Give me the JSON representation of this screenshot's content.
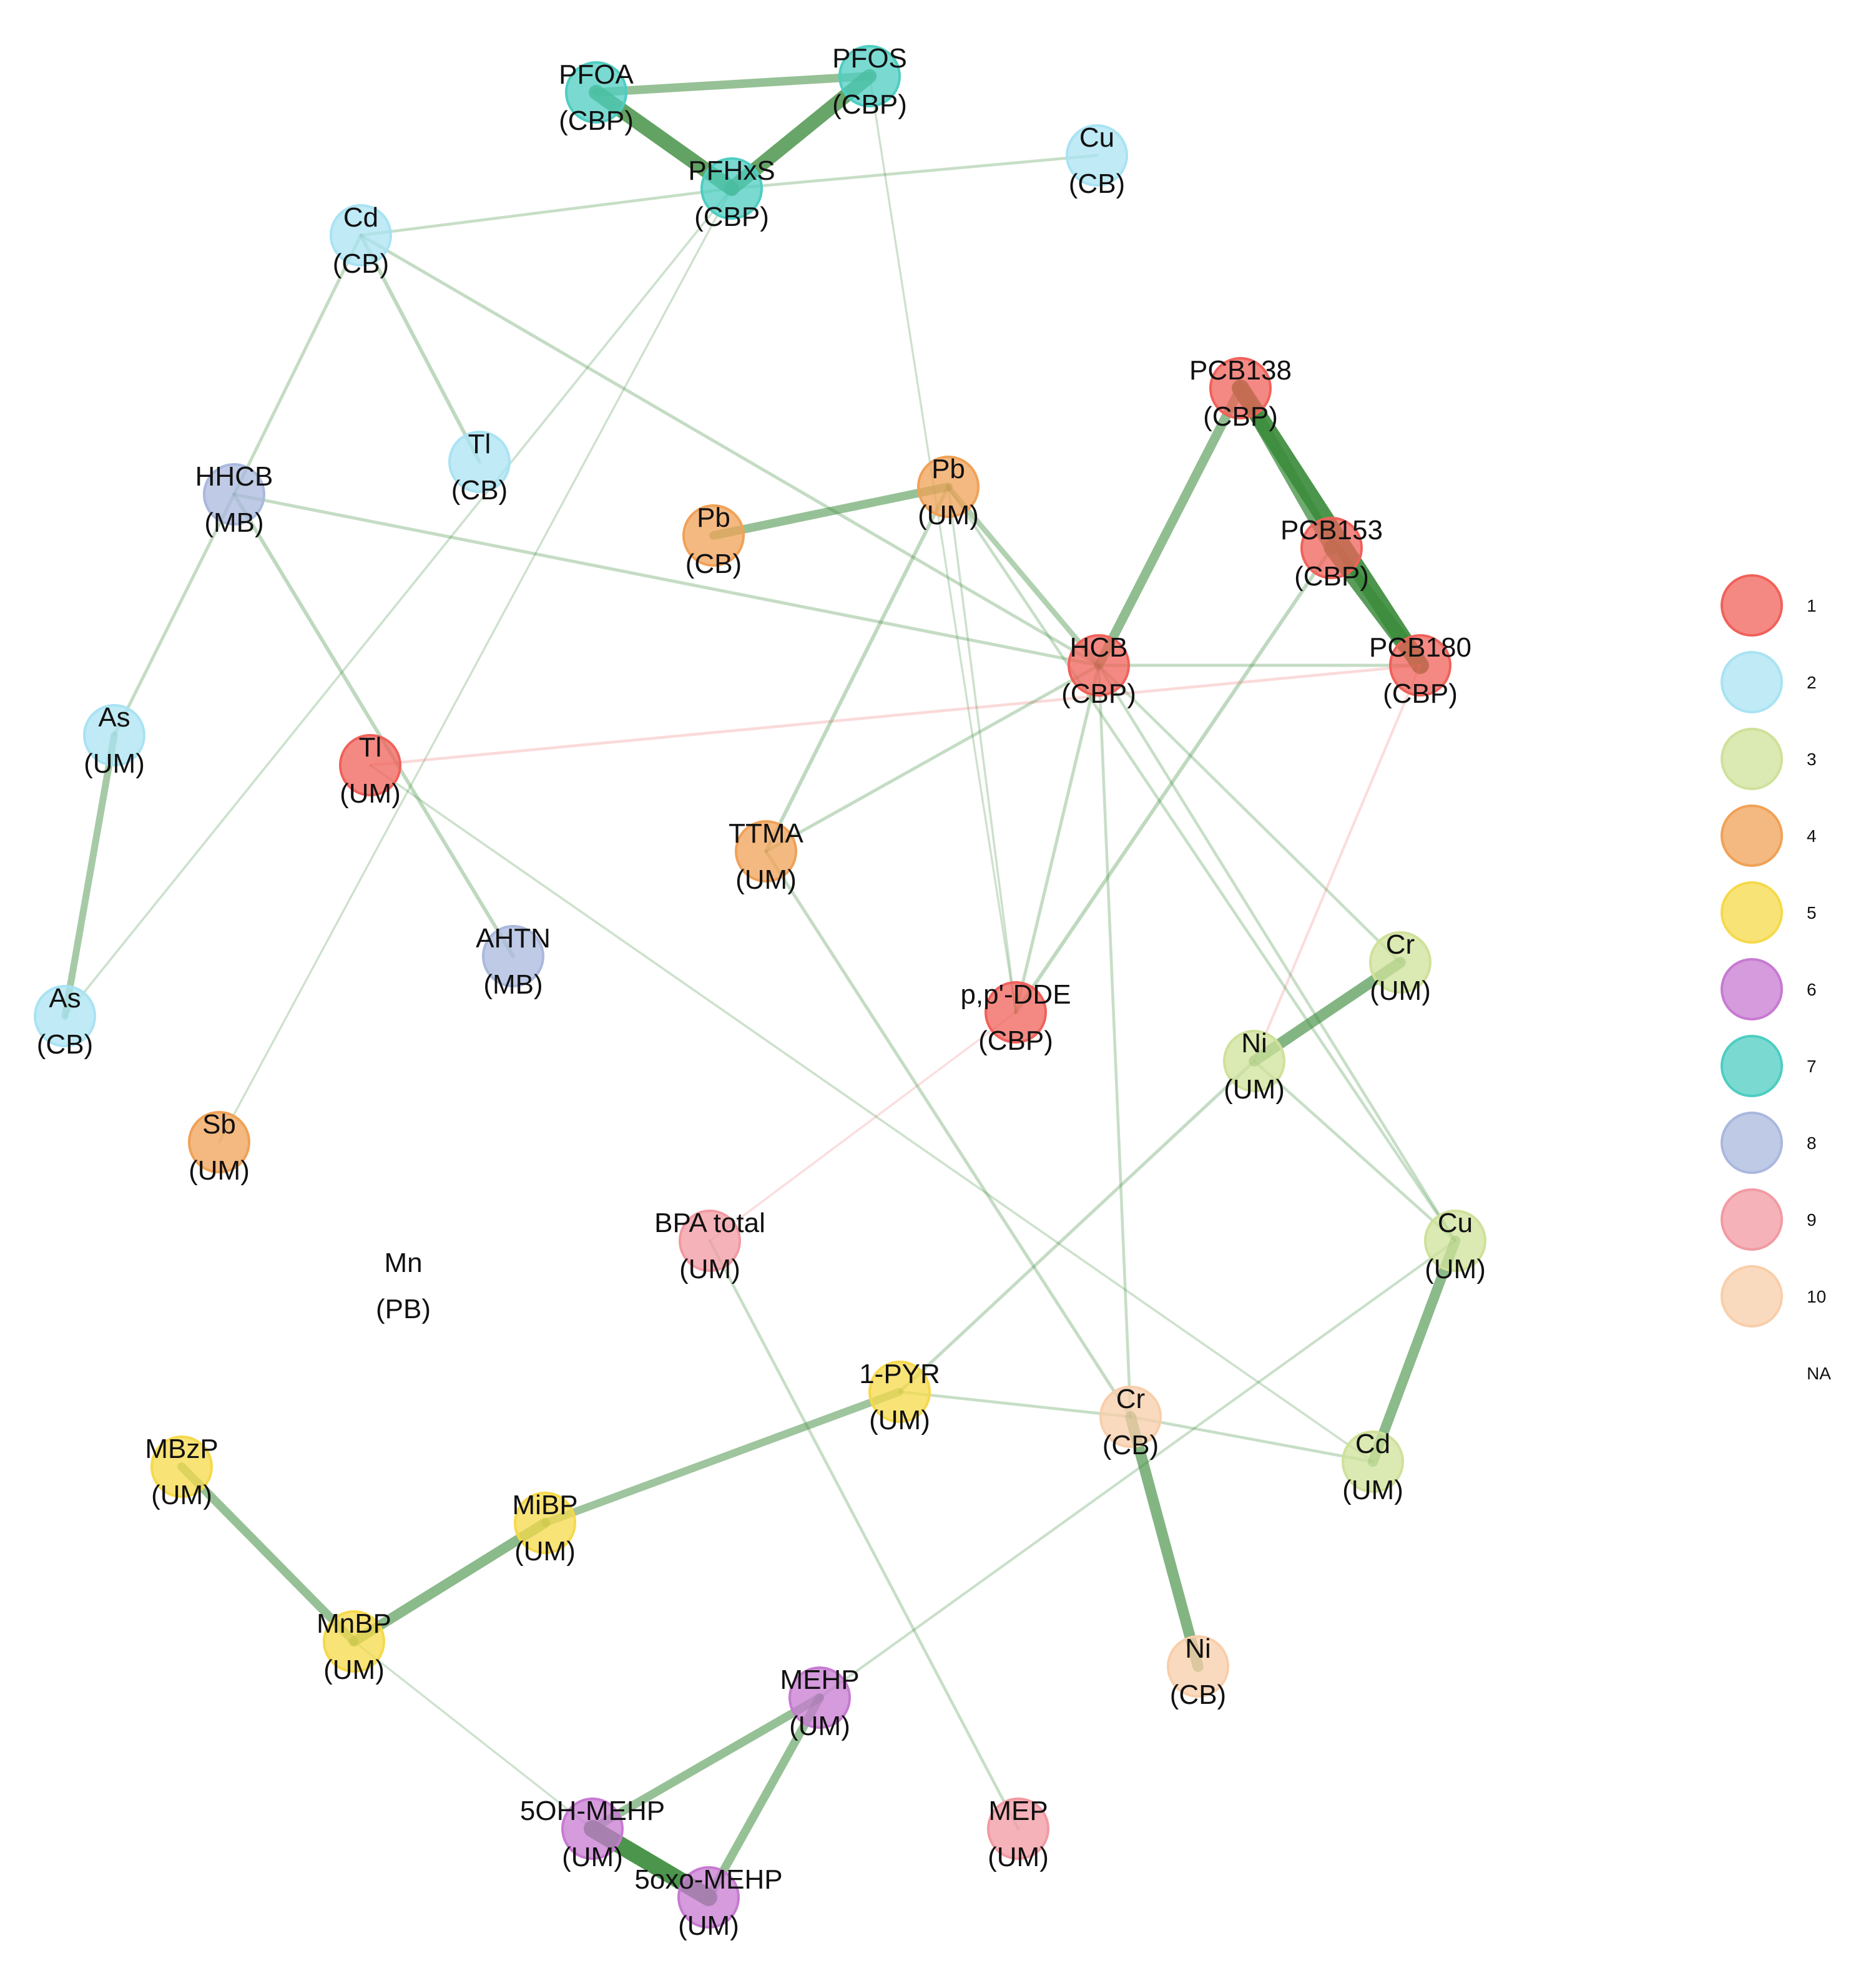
{
  "nodes": [
    {
      "id": "pfoa_cbp",
      "name": "PFOA",
      "matrix": "(CBP)",
      "group": 7
    },
    {
      "id": "pfos_cbp",
      "name": "PFOS",
      "matrix": "(CBP)",
      "group": 7
    },
    {
      "id": "pfhxs_cbp",
      "name": "PFHxS",
      "matrix": "(CBP)",
      "group": 7
    },
    {
      "id": "cu_cb",
      "name": "Cu",
      "matrix": "(CB)",
      "group": 2
    },
    {
      "id": "cd_cb",
      "name": "Cd",
      "matrix": "(CB)",
      "group": 2
    },
    {
      "id": "tl_cb",
      "name": "Tl",
      "matrix": "(CB)",
      "group": 2
    },
    {
      "id": "hhcb_mb",
      "name": "HHCB",
      "matrix": "(MB)",
      "group": 8
    },
    {
      "id": "pb_um",
      "name": "Pb",
      "matrix": "(UM)",
      "group": 4
    },
    {
      "id": "pb_cb",
      "name": "Pb",
      "matrix": "(CB)",
      "group": 4
    },
    {
      "id": "pcb138_cbp",
      "name": "PCB138",
      "matrix": "(CBP)",
      "group": 1
    },
    {
      "id": "pcb153_cbp",
      "name": "PCB153",
      "matrix": "(CBP)",
      "group": 1
    },
    {
      "id": "pcb180_cbp",
      "name": "PCB180",
      "matrix": "(CBP)",
      "group": 1
    },
    {
      "id": "hcb_cbp",
      "name": "HCB",
      "matrix": "(CBP)",
      "group": 1
    },
    {
      "id": "as_um",
      "name": "As",
      "matrix": "(UM)",
      "group": 2
    },
    {
      "id": "tl_um",
      "name": "Tl",
      "matrix": "(UM)",
      "group": 1
    },
    {
      "id": "ttma_um",
      "name": "TTMA",
      "matrix": "(UM)",
      "group": 4
    },
    {
      "id": "ahtn_mb",
      "name": "AHTN",
      "matrix": "(MB)",
      "group": 8
    },
    {
      "id": "as_cb",
      "name": "As",
      "matrix": "(CB)",
      "group": 2
    },
    {
      "id": "ppdde_cbp",
      "name": "p,p'-DDE",
      "matrix": "(CBP)",
      "group": 1
    },
    {
      "id": "cr_um",
      "name": "Cr",
      "matrix": "(UM)",
      "group": 3
    },
    {
      "id": "ni_um",
      "name": "Ni",
      "matrix": "(UM)",
      "group": 3
    },
    {
      "id": "sb_um",
      "name": "Sb",
      "matrix": "(UM)",
      "group": 4
    },
    {
      "id": "mn_pb",
      "name": "Mn",
      "matrix": "(PB)",
      "group": null
    },
    {
      "id": "bpa_um",
      "name": "BPA total",
      "matrix": "(UM)",
      "group": 9
    },
    {
      "id": "cu_um",
      "name": "Cu",
      "matrix": "(UM)",
      "group": 3
    },
    {
      "id": "pyr_um",
      "name": "1-PYR",
      "matrix": "(UM)",
      "group": 5
    },
    {
      "id": "cr_cb",
      "name": "Cr",
      "matrix": "(CB)",
      "group": 10
    },
    {
      "id": "cd_um",
      "name": "Cd",
      "matrix": "(UM)",
      "group": 3
    },
    {
      "id": "mbzp_um",
      "name": "MBzP",
      "matrix": "(UM)",
      "group": 5
    },
    {
      "id": "mibp_um",
      "name": "MiBP",
      "matrix": "(UM)",
      "group": 5
    },
    {
      "id": "mnbp_um",
      "name": "MnBP",
      "matrix": "(UM)",
      "group": 5
    },
    {
      "id": "ni_cb",
      "name": "Ni",
      "matrix": "(CB)",
      "group": 10
    },
    {
      "id": "mehp_um",
      "name": "MEHP",
      "matrix": "(UM)",
      "group": 6
    },
    {
      "id": "oh_mehp_um",
      "name": "5OH-MEHP",
      "matrix": "(UM)",
      "group": 6
    },
    {
      "id": "mep_um",
      "name": "MEP",
      "matrix": "(UM)",
      "group": 9
    },
    {
      "id": "oxo_mehp_um",
      "name": "5oxo-MEHP",
      "matrix": "(UM)",
      "group": 6
    }
  ],
  "edges": [
    {
      "source": "pfoa_cbp",
      "target": "pfhxs_cbp",
      "weight": 0.85,
      "sign": "positive"
    },
    {
      "source": "pfos_cbp",
      "target": "pfhxs_cbp",
      "weight": 0.8,
      "sign": "positive"
    },
    {
      "source": "pfoa_cbp",
      "target": "pfos_cbp",
      "weight": 0.45,
      "sign": "positive"
    },
    {
      "source": "pfhxs_cbp",
      "target": "cu_cb",
      "weight": 0.1,
      "sign": "positive"
    },
    {
      "source": "pfhxs_cbp",
      "target": "cd_cb",
      "weight": 0.1,
      "sign": "positive"
    },
    {
      "source": "pfhxs_cbp",
      "target": "as_cb",
      "weight": 0.06,
      "sign": "positive"
    },
    {
      "source": "pfhxs_cbp",
      "target": "sb_um",
      "weight": 0.05,
      "sign": "positive"
    },
    {
      "source": "pfos_cbp",
      "target": "ppdde_cbp",
      "weight": 0.05,
      "sign": "positive"
    },
    {
      "source": "cd_cb",
      "target": "tl_cb",
      "weight": 0.15,
      "sign": "positive"
    },
    {
      "source": "cd_cb",
      "target": "hhcb_mb",
      "weight": 0.12,
      "sign": "positive"
    },
    {
      "source": "cd_cb",
      "target": "hcb_cbp",
      "weight": 0.12,
      "sign": "positive"
    },
    {
      "source": "pcb138_cbp",
      "target": "pcb180_cbp",
      "weight": 1.0,
      "sign": "positive"
    },
    {
      "source": "pcb138_cbp",
      "target": "pcb153_cbp",
      "weight": 0.75,
      "sign": "positive"
    },
    {
      "source": "pcb153_cbp",
      "target": "pcb180_cbp",
      "weight": 0.9,
      "sign": "positive"
    },
    {
      "source": "pcb138_cbp",
      "target": "hcb_cbp",
      "weight": 0.5,
      "sign": "positive"
    },
    {
      "source": "pcb153_cbp",
      "target": "ppdde_cbp",
      "weight": 0.15,
      "sign": "positive"
    },
    {
      "source": "hcb_cbp",
      "target": "pcb180_cbp",
      "weight": 0.12,
      "sign": "positive"
    },
    {
      "source": "tl_um",
      "target": "pcb180_cbp",
      "weight": 0.1,
      "sign": "negative"
    },
    {
      "source": "pcb180_cbp",
      "target": "ni_um",
      "weight": 0.08,
      "sign": "negative"
    },
    {
      "source": "ppdde_cbp",
      "target": "bpa_um",
      "weight": 0.06,
      "sign": "negative"
    },
    {
      "source": "pb_cb",
      "target": "pb_um",
      "weight": 0.45,
      "sign": "positive"
    },
    {
      "source": "pb_um",
      "target": "hcb_cbp",
      "weight": 0.25,
      "sign": "positive"
    },
    {
      "source": "pb_um",
      "target": "ttma_um",
      "weight": 0.15,
      "sign": "positive"
    },
    {
      "source": "pb_um",
      "target": "ppdde_cbp",
      "weight": 0.06,
      "sign": "positive"
    },
    {
      "source": "pb_um",
      "target": "cu_um",
      "weight": 0.1,
      "sign": "positive"
    },
    {
      "source": "hhcb_mb",
      "target": "as_um",
      "weight": 0.12,
      "sign": "positive"
    },
    {
      "source": "hhcb_mb",
      "target": "ahtn_mb",
      "weight": 0.15,
      "sign": "positive"
    },
    {
      "source": "hhcb_mb",
      "target": "hcb_cbp",
      "weight": 0.12,
      "sign": "positive"
    },
    {
      "source": "as_um",
      "target": "as_cb",
      "weight": 0.35,
      "sign": "positive"
    },
    {
      "source": "tl_um",
      "target": "cd_um",
      "weight": 0.06,
      "sign": "positive"
    },
    {
      "source": "ttma_um",
      "target": "hcb_cbp",
      "weight": 0.12,
      "sign": "positive"
    },
    {
      "source": "ttma_um",
      "target": "cr_cb",
      "weight": 0.12,
      "sign": "positive"
    },
    {
      "source": "hcb_cbp",
      "target": "ppdde_cbp",
      "weight": 0.12,
      "sign": "positive"
    },
    {
      "source": "hcb_cbp",
      "target": "cr_um",
      "weight": 0.1,
      "sign": "positive"
    },
    {
      "source": "hcb_cbp",
      "target": "cr_cb",
      "weight": 0.1,
      "sign": "positive"
    },
    {
      "source": "hcb_cbp",
      "target": "cu_um",
      "weight": 0.1,
      "sign": "positive"
    },
    {
      "source": "ni_um",
      "target": "cr_um",
      "weight": 0.6,
      "sign": "positive"
    },
    {
      "source": "ni_um",
      "target": "pyr_um",
      "weight": 0.12,
      "sign": "positive"
    },
    {
      "source": "ni_um",
      "target": "cu_um",
      "weight": 0.1,
      "sign": "positive"
    },
    {
      "source": "cu_um",
      "target": "cd_um",
      "weight": 0.55,
      "sign": "positive"
    },
    {
      "source": "cu_um",
      "target": "mehp_um",
      "weight": 0.08,
      "sign": "positive"
    },
    {
      "source": "bpa_um",
      "target": "mep_um",
      "weight": 0.1,
      "sign": "positive"
    },
    {
      "source": "pyr_um",
      "target": "mibp_um",
      "weight": 0.4,
      "sign": "positive"
    },
    {
      "source": "pyr_um",
      "target": "cr_cb",
      "weight": 0.1,
      "sign": "positive"
    },
    {
      "source": "cr_cb",
      "target": "ni_cb",
      "weight": 0.6,
      "sign": "positive"
    },
    {
      "source": "cr_cb",
      "target": "cd_um",
      "weight": 0.1,
      "sign": "positive"
    },
    {
      "source": "mibp_um",
      "target": "mnbp_um",
      "weight": 0.55,
      "sign": "positive"
    },
    {
      "source": "mbzp_um",
      "target": "mnbp_um",
      "weight": 0.45,
      "sign": "positive"
    },
    {
      "source": "mnbp_um",
      "target": "oh_mehp_um",
      "weight": 0.05,
      "sign": "positive"
    },
    {
      "source": "mehp_um",
      "target": "oh_mehp_um",
      "weight": 0.45,
      "sign": "positive"
    },
    {
      "source": "mehp_um",
      "target": "oxo_mehp_um",
      "weight": 0.45,
      "sign": "positive"
    },
    {
      "source": "oh_mehp_um",
      "target": "oxo_mehp_um",
      "weight": 1.0,
      "sign": "positive"
    }
  ],
  "legend": [
    {
      "label": "1",
      "group": 1
    },
    {
      "label": "2",
      "group": 2
    },
    {
      "label": "3",
      "group": 3
    },
    {
      "label": "4",
      "group": 4
    },
    {
      "label": "5",
      "group": 5
    },
    {
      "label": "6",
      "group": 6
    },
    {
      "label": "7",
      "group": 7
    },
    {
      "label": "8",
      "group": 8
    },
    {
      "label": "9",
      "group": 9
    },
    {
      "label": "10",
      "group": 10
    },
    {
      "label": "NA",
      "group": null
    }
  ],
  "colors": {
    "groups": {
      "1": "#f0615a",
      "2": "#a9e3f3",
      "3": "#cfe19a",
      "4": "#f0a157",
      "5": "#f5d94a",
      "6": "#c77ad1",
      "7": "#4ecdc2",
      "8": "#aab8de",
      "9": "#f29aa2",
      "10": "#f8ceaa"
    },
    "positive_edge": "#3d8c3d",
    "negative_edge": "#f08080"
  }
}
